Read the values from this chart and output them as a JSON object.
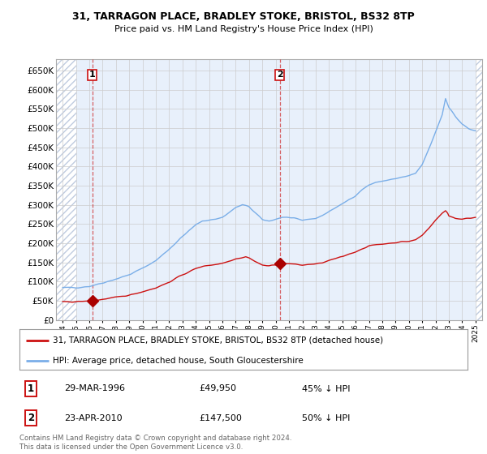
{
  "title_line1": "31, TARRAGON PLACE, BRADLEY STOKE, BRISTOL, BS32 8TP",
  "title_line2": "Price paid vs. HM Land Registry's House Price Index (HPI)",
  "background_plot": "#e8f0fb",
  "background_fig": "#ffffff",
  "hatch_color": "#c0cce0",
  "grid_color": "#cccccc",
  "hpi_color": "#7aaee8",
  "price_color": "#cc1111",
  "marker_color": "#aa0000",
  "ylim": [
    0,
    680000
  ],
  "yticks": [
    0,
    50000,
    100000,
    150000,
    200000,
    250000,
    300000,
    350000,
    400000,
    450000,
    500000,
    550000,
    600000,
    650000
  ],
  "ytick_labels": [
    "£0",
    "£50K",
    "£100K",
    "£150K",
    "£200K",
    "£250K",
    "£300K",
    "£350K",
    "£400K",
    "£450K",
    "£500K",
    "£550K",
    "£600K",
    "£650K"
  ],
  "xlim_start": 1993.5,
  "xlim_end": 2025.5,
  "transaction1_x": 1996.24,
  "transaction1_y": 49950,
  "transaction1_label": "1",
  "transaction2_x": 2010.31,
  "transaction2_y": 147500,
  "transaction2_label": "2",
  "legend_line1": "31, TARRAGON PLACE, BRADLEY STOKE, BRISTOL, BS32 8TP (detached house)",
  "legend_line2": "HPI: Average price, detached house, South Gloucestershire",
  "annotation1_date": "29-MAR-1996",
  "annotation1_price": "£49,950",
  "annotation1_hpi": "45% ↓ HPI",
  "annotation2_date": "23-APR-2010",
  "annotation2_price": "£147,500",
  "annotation2_hpi": "50% ↓ HPI",
  "footer": "Contains HM Land Registry data © Crown copyright and database right 2024.\nThis data is licensed under the Open Government Licence v3.0."
}
